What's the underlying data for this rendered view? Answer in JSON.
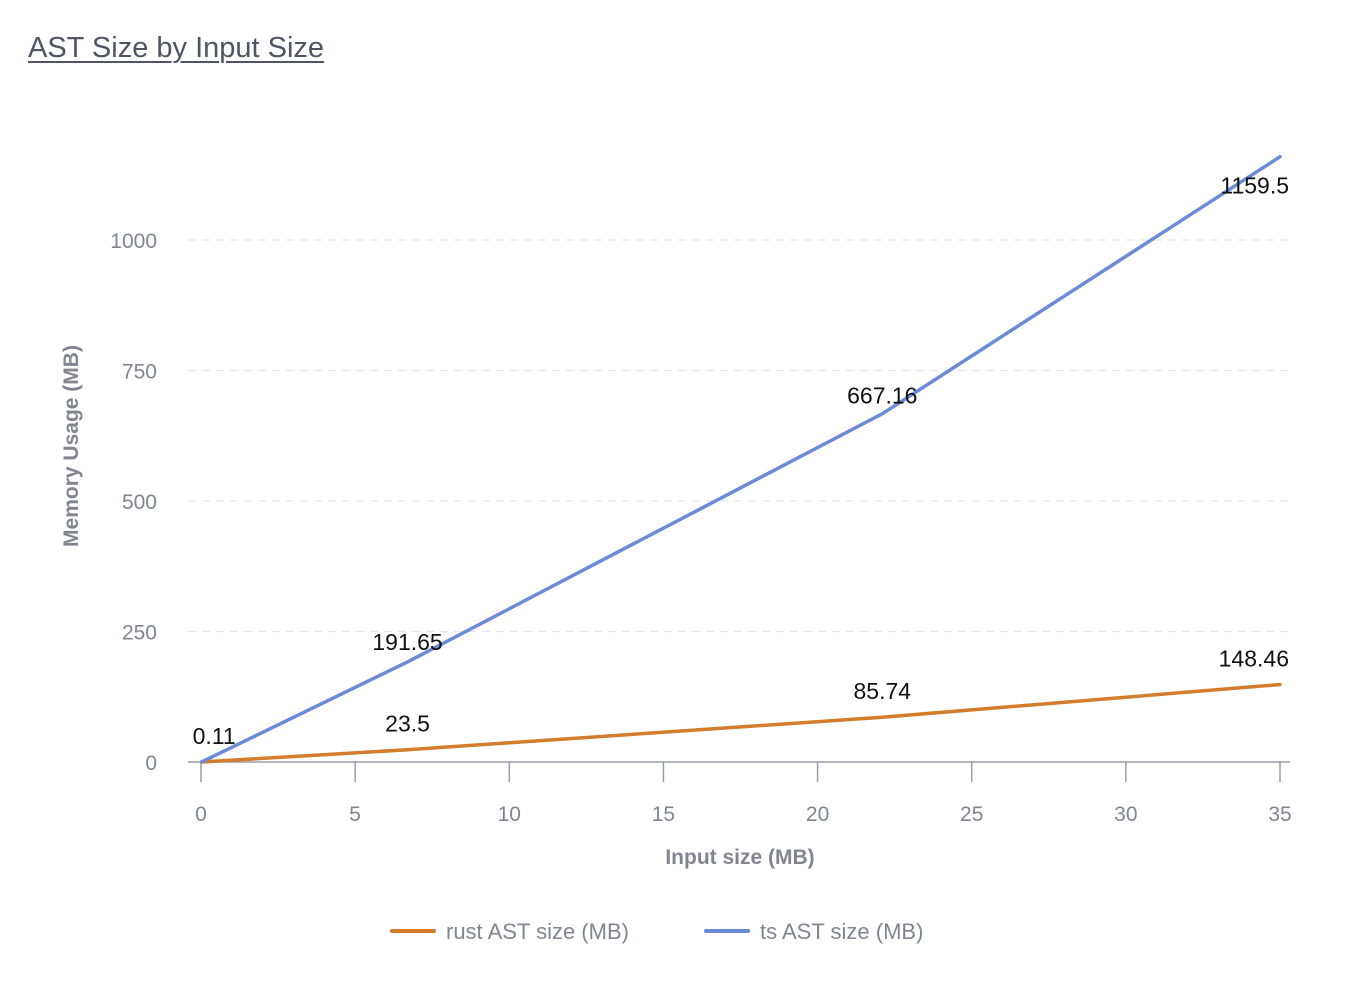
{
  "header": {
    "title": "AST Size by Input Size"
  },
  "chart_data": {
    "type": "line",
    "title": "AST Size by Input Size",
    "xlabel": "Input size (MB)",
    "ylabel": "Memory Usage (MB)",
    "xlim": [
      0,
      35
    ],
    "ylim": [
      0,
      1160
    ],
    "x_ticks": [
      0,
      5,
      10,
      15,
      20,
      25,
      30,
      35
    ],
    "y_ticks": [
      0,
      250,
      500,
      750,
      1000
    ],
    "grid": "horizontal dashed",
    "legend_position": "bottom",
    "series": [
      {
        "name": "rust AST size (MB)",
        "color": "#d27c2c",
        "x": [
          0.02,
          6.7,
          22.1,
          35
        ],
        "y": [
          0.02,
          23.5,
          85.74,
          148.46
        ],
        "labels": [
          "",
          "23.5",
          "85.74",
          "148.46"
        ]
      },
      {
        "name": "ts AST size (MB)",
        "color": "#6b8ad8",
        "x": [
          0.02,
          6.7,
          22.1,
          35
        ],
        "y": [
          0.11,
          191.65,
          667.16,
          1159.5
        ],
        "labels": [
          "0.11",
          "191.65",
          "667.16",
          "1159.5"
        ]
      }
    ]
  }
}
